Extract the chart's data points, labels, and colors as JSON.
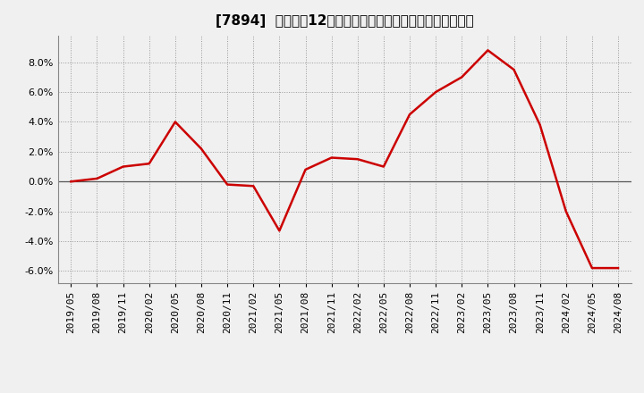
{
  "title": "[7894]  売上高の12か月移動合計の対前年同期増減率の推移",
  "line_color": "#cc0000",
  "background_color": "#f0f0f0",
  "plot_bg_color": "#f0f0f0",
  "grid_color": "#999999",
  "zero_line_color": "#555555",
  "ylim": [
    -0.068,
    0.098
  ],
  "yticks": [
    -0.06,
    -0.04,
    -0.02,
    0.0,
    0.02,
    0.04,
    0.06,
    0.08
  ],
  "dates": [
    "2019/05",
    "2019/08",
    "2019/11",
    "2020/02",
    "2020/05",
    "2020/08",
    "2020/11",
    "2021/02",
    "2021/05",
    "2021/08",
    "2021/11",
    "2022/02",
    "2022/05",
    "2022/08",
    "2022/11",
    "2023/02",
    "2023/05",
    "2023/08",
    "2023/11",
    "2024/02",
    "2024/05",
    "2024/08"
  ],
  "values": [
    0.0,
    0.002,
    0.01,
    0.012,
    0.04,
    0.022,
    -0.002,
    -0.003,
    -0.033,
    0.008,
    0.016,
    0.015,
    0.01,
    0.045,
    0.06,
    0.07,
    0.088,
    0.075,
    0.038,
    -0.02,
    -0.058,
    -0.058
  ],
  "title_fontsize": 11,
  "tick_fontsize": 8,
  "line_width": 1.8
}
